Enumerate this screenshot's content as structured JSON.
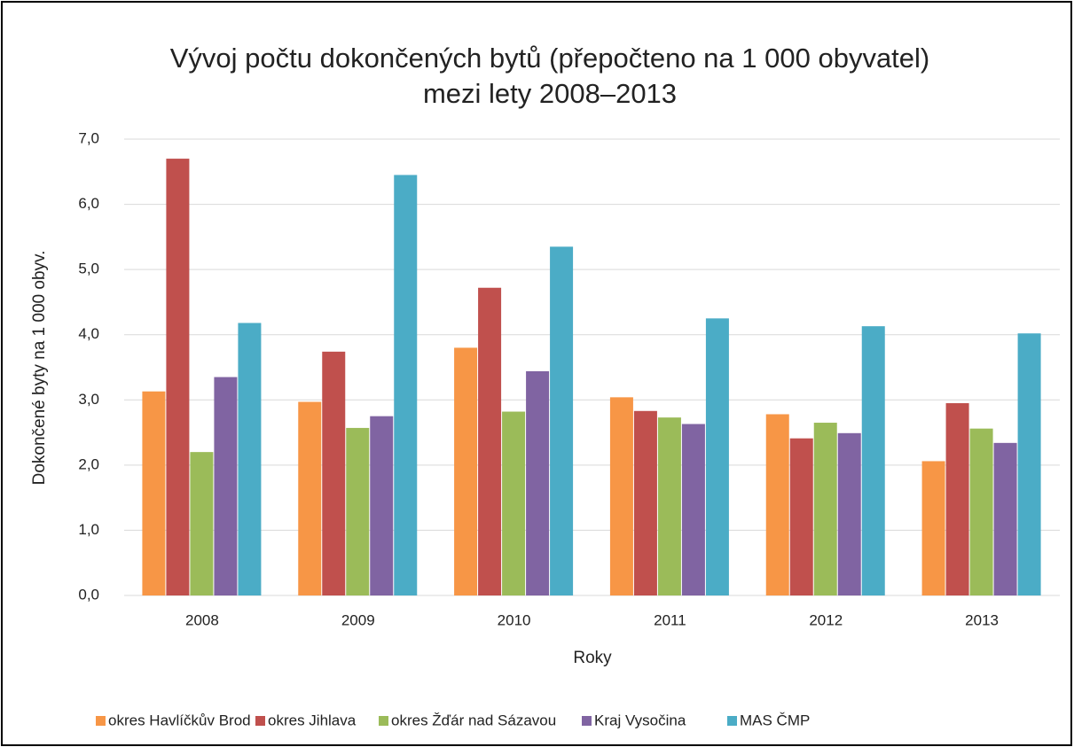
{
  "chart_data": {
    "type": "bar",
    "title": [
      "Vývoj počtu dokončených bytů (přepočteno na 1 000 obyvatel)",
      "mezi lety 2008–2013"
    ],
    "x_label": "Roky",
    "y_label": "Dokončené byty na 1 000 obyv.",
    "categories": [
      "2008",
      "2009",
      "2010",
      "2011",
      "2012",
      "2013"
    ],
    "series": [
      {
        "name": "okres Havlíčkův Brod",
        "color": "#f79646",
        "values": [
          3.13,
          2.97,
          3.8,
          3.04,
          2.78,
          2.06
        ]
      },
      {
        "name": "okres Jihlava",
        "color": "#c0504d",
        "values": [
          6.7,
          3.74,
          4.72,
          2.83,
          2.41,
          2.95
        ]
      },
      {
        "name": "okres Žďár nad Sázavou",
        "color": "#9bbb59",
        "values": [
          2.2,
          2.57,
          2.82,
          2.73,
          2.65,
          2.56
        ]
      },
      {
        "name": "Kraj Vysočina",
        "color": "#8064a2",
        "values": [
          3.35,
          2.75,
          3.44,
          2.63,
          2.49,
          2.34
        ]
      },
      {
        "name": "MAS ČMP",
        "color": "#4bacc6",
        "values": [
          4.18,
          6.45,
          5.35,
          4.25,
          4.13,
          4.02
        ]
      }
    ],
    "ylim": [
      0,
      7
    ],
    "yticks": [
      {
        "value": 0,
        "label": "0,0"
      },
      {
        "value": 1,
        "label": "1,0"
      },
      {
        "value": 2,
        "label": "2,0"
      },
      {
        "value": 3,
        "label": "3,0"
      },
      {
        "value": 4,
        "label": "4,0"
      },
      {
        "value": 5,
        "label": "5,0"
      },
      {
        "value": 6,
        "label": "6,0"
      },
      {
        "value": 7,
        "label": "7,0"
      }
    ],
    "grid": true,
    "legend": "bottom"
  }
}
